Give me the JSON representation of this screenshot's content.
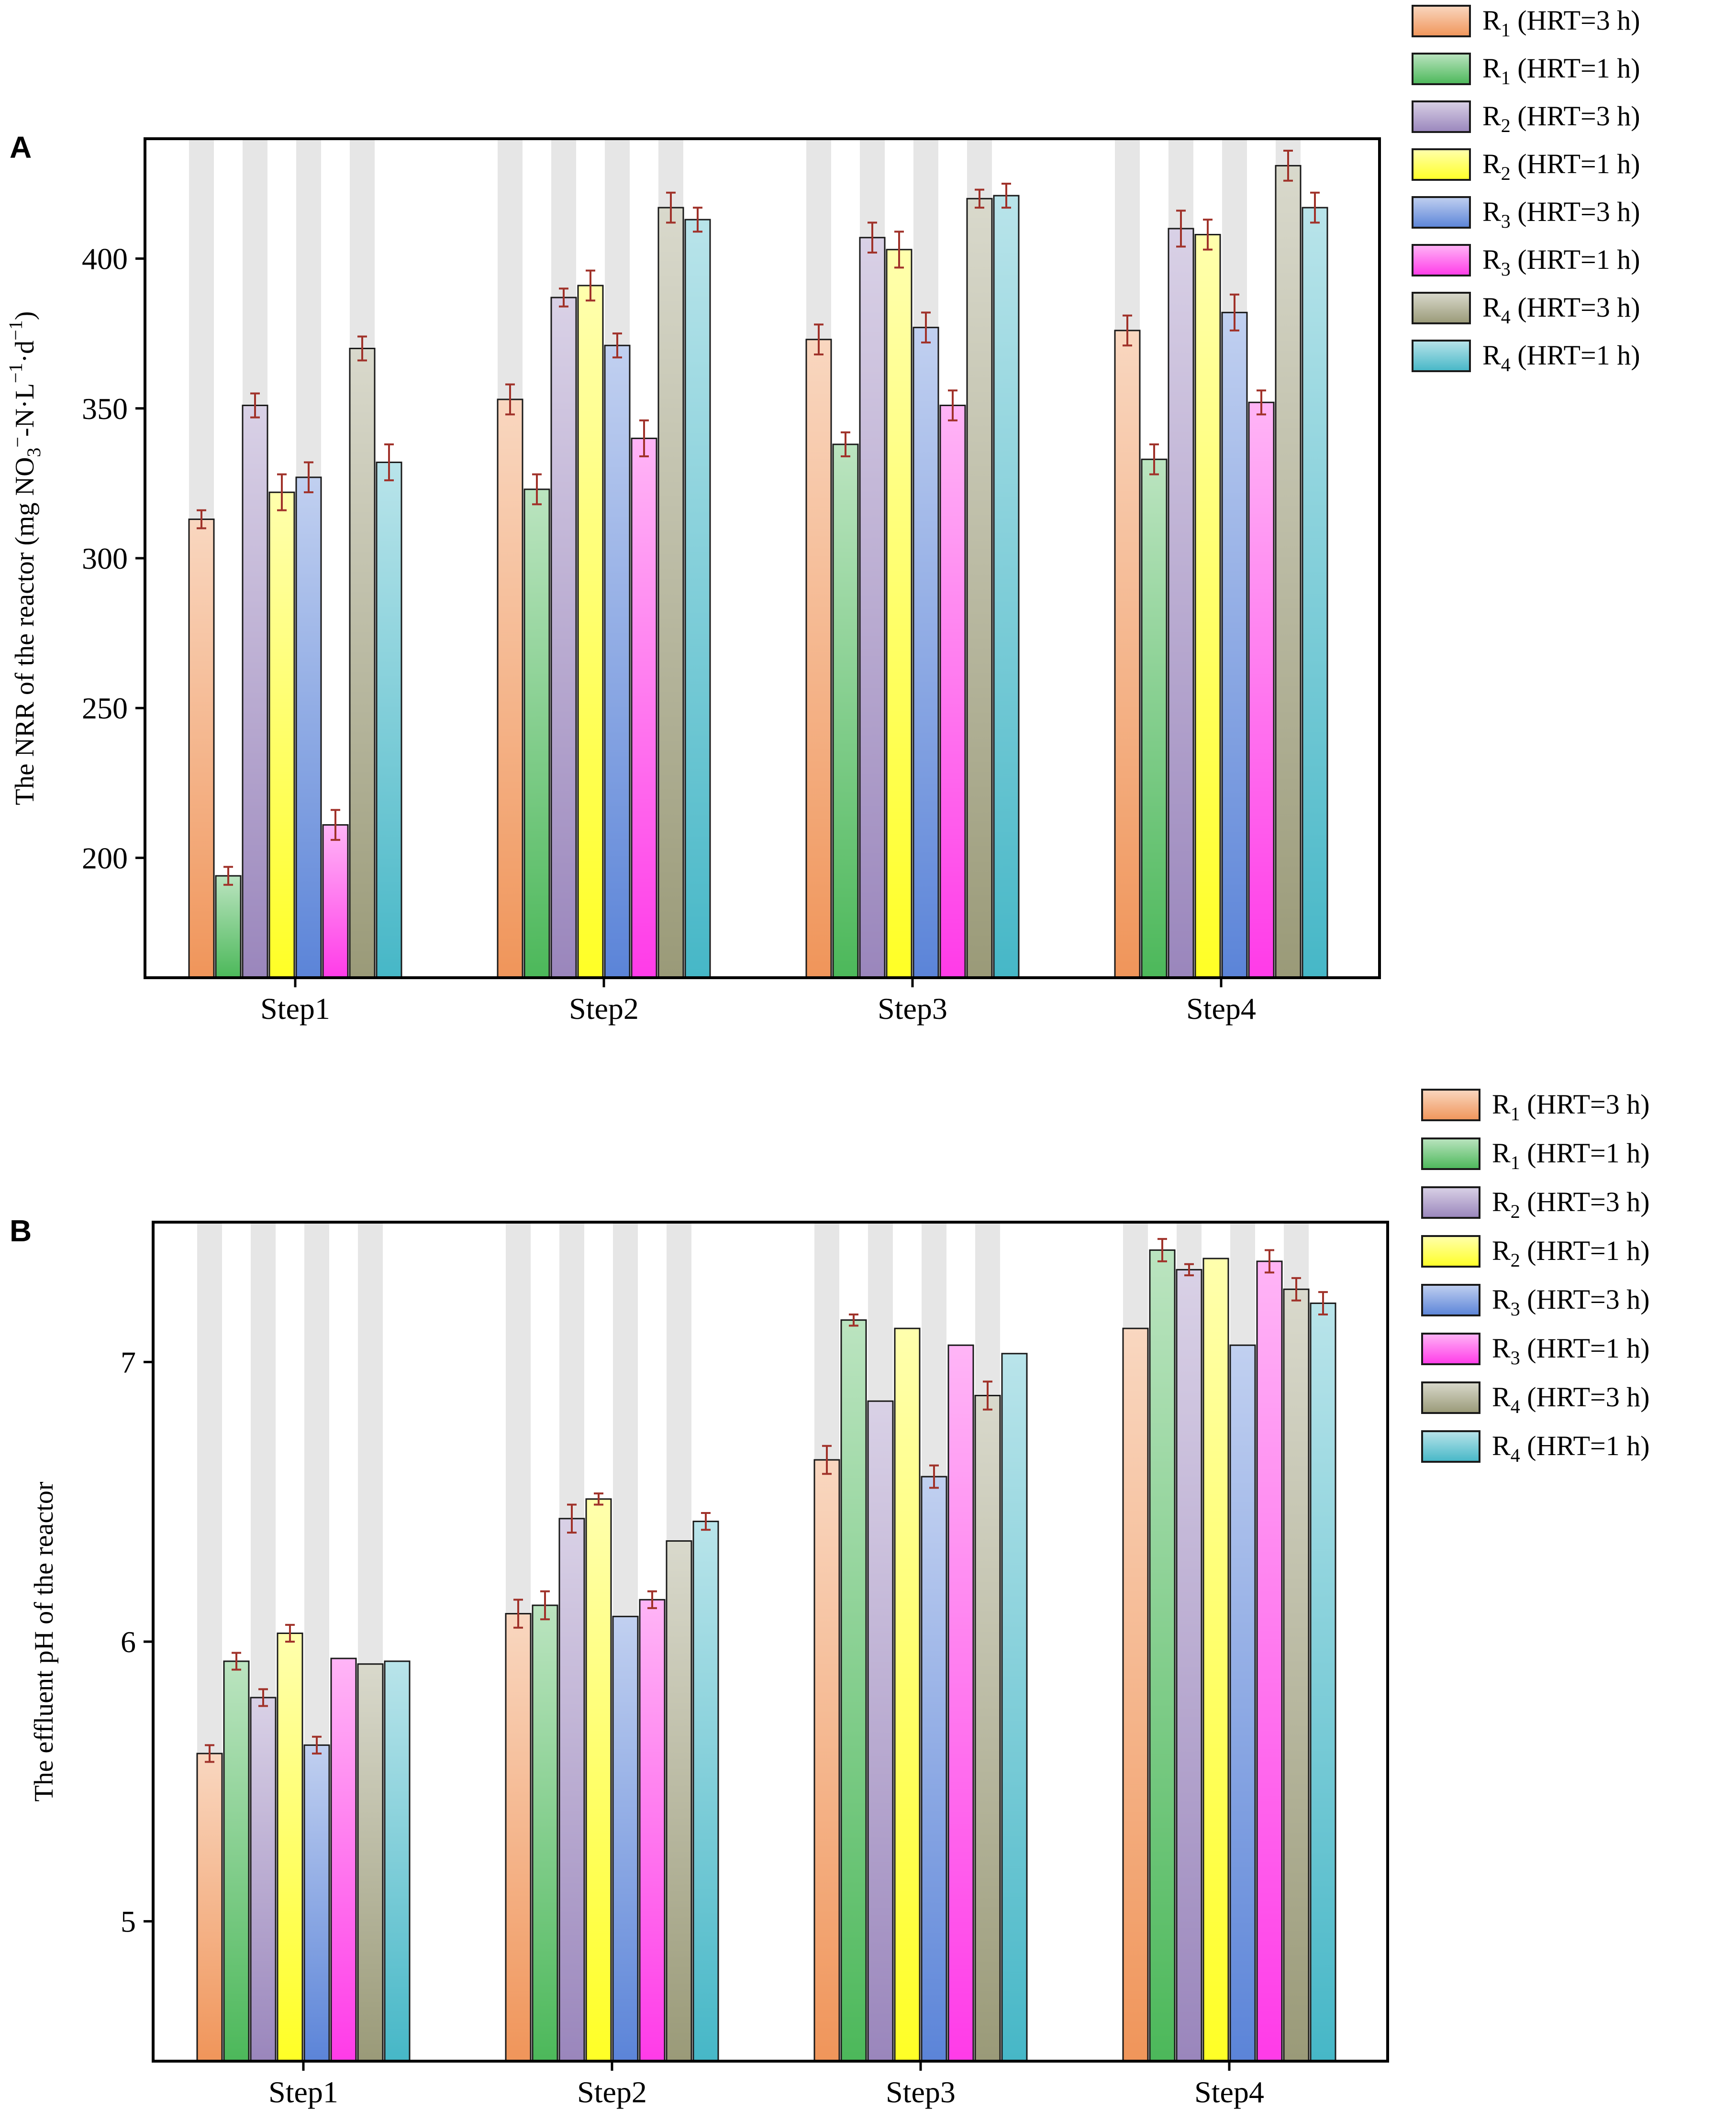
{
  "series_meta": [
    {
      "name": "R1 (HRT=3 h)",
      "base": "R",
      "sub": "1",
      "hrt": "(HRT=3 h)",
      "color": "#f0955a"
    },
    {
      "name": "R1 (HRT=1 h)",
      "base": "R",
      "sub": "1",
      "hrt": "(HRT=1 h)",
      "color": "#4cb85a"
    },
    {
      "name": "R2 (HRT=3 h)",
      "base": "R",
      "sub": "2",
      "hrt": "(HRT=3 h)",
      "color": "#9a86bc"
    },
    {
      "name": "R2 (HRT=1 h)",
      "base": "R",
      "sub": "2",
      "hrt": "(HRT=1 h)",
      "color": "#ffff26"
    },
    {
      "name": "R3 (HRT=3 h)",
      "base": "R",
      "sub": "3",
      "hrt": "(HRT=3 h)",
      "color": "#5b84d8"
    },
    {
      "name": "R3 (HRT=1 h)",
      "base": "R",
      "sub": "3",
      "hrt": "(HRT=1 h)",
      "color": "#ff3be8"
    },
    {
      "name": "R4 (HRT=3 h)",
      "base": "R",
      "sub": "4",
      "hrt": "(HRT=3 h)",
      "color": "#9a9a78"
    },
    {
      "name": "R4 (HRT=1 h)",
      "base": "R",
      "sub": "4",
      "hrt": "(HRT=1 h)",
      "color": "#46b7c7"
    }
  ],
  "chart_data": [
    {
      "type": "bar",
      "panel": "A",
      "title": "",
      "xlabel": "",
      "ylabel": "The NRR of the reactor (mg NO3−-N·L−1·d−1)",
      "ylabel_parts": {
        "prefix": "The NRR of the reactor (mg NO",
        "s1": "3",
        "p1": "−",
        "mid": "-N·L",
        "p2": "−1",
        "dot": "·d",
        "p3": "−1",
        "end": ")"
      },
      "categories": [
        "Step1",
        "Step2",
        "Step3",
        "Step4"
      ],
      "ylim": [
        160,
        440
      ],
      "yticks": [
        200,
        250,
        300,
        350,
        400
      ],
      "legend_position": "outside-top-right",
      "series": [
        {
          "name": "R1 (HRT=3 h)",
          "values": [
            313,
            353,
            373,
            376
          ],
          "errors": [
            3,
            5,
            5,
            5
          ]
        },
        {
          "name": "R1 (HRT=1 h)",
          "values": [
            194,
            323,
            338,
            333
          ],
          "errors": [
            3,
            5,
            4,
            5
          ]
        },
        {
          "name": "R2 (HRT=3 h)",
          "values": [
            351,
            387,
            407,
            410
          ],
          "errors": [
            4,
            3,
            5,
            6
          ]
        },
        {
          "name": "R2 (HRT=1 h)",
          "values": [
            322,
            391,
            403,
            408
          ],
          "errors": [
            6,
            5,
            6,
            5
          ]
        },
        {
          "name": "R3 (HRT=3 h)",
          "values": [
            327,
            371,
            377,
            382
          ],
          "errors": [
            5,
            4,
            5,
            6
          ]
        },
        {
          "name": "R3 (HRT=1 h)",
          "values": [
            211,
            340,
            351,
            352
          ],
          "errors": [
            5,
            6,
            5,
            4
          ]
        },
        {
          "name": "R4 (HRT=3 h)",
          "values": [
            370,
            417,
            420,
            431
          ],
          "errors": [
            4,
            5,
            3,
            5
          ]
        },
        {
          "name": "R4 (HRT=1 h)",
          "values": [
            332,
            413,
            421,
            417
          ],
          "errors": [
            6,
            4,
            4,
            5
          ]
        }
      ]
    },
    {
      "type": "bar",
      "panel": "B",
      "title": "",
      "xlabel": "",
      "ylabel": "The effluent pH of the reactor",
      "categories": [
        "Step1",
        "Step2",
        "Step3",
        "Step4"
      ],
      "ylim": [
        4.5,
        7.5
      ],
      "yticks": [
        5,
        6,
        7
      ],
      "legend_position": "outside-top-right",
      "series": [
        {
          "name": "R1 (HRT=3 h)",
          "values": [
            5.6,
            6.1,
            6.65,
            7.12
          ],
          "errors": [
            0.03,
            0.05,
            0.05,
            0
          ]
        },
        {
          "name": "R1 (HRT=1 h)",
          "values": [
            5.93,
            6.13,
            7.15,
            7.4
          ],
          "errors": [
            0.03,
            0.05,
            0.02,
            0.04
          ]
        },
        {
          "name": "R2 (HRT=3 h)",
          "values": [
            5.8,
            6.44,
            6.86,
            7.33
          ],
          "errors": [
            0.03,
            0.05,
            0,
            0.02
          ]
        },
        {
          "name": "R2 (HRT=1 h)",
          "values": [
            6.03,
            6.51,
            7.12,
            7.37
          ],
          "errors": [
            0.03,
            0.02,
            0,
            0
          ]
        },
        {
          "name": "R3 (HRT=3 h)",
          "values": [
            5.63,
            6.09,
            6.59,
            7.06
          ],
          "errors": [
            0.03,
            0,
            0.04,
            0
          ]
        },
        {
          "name": "R3 (HRT=1 h)",
          "values": [
            5.94,
            6.15,
            7.06,
            7.36
          ],
          "errors": [
            0,
            0.03,
            0,
            0.04
          ]
        },
        {
          "name": "R4 (HRT=3 h)",
          "values": [
            5.92,
            6.36,
            6.88,
            7.26
          ],
          "errors": [
            0,
            0,
            0.05,
            0.04
          ]
        },
        {
          "name": "R4 (HRT=1 h)",
          "values": [
            5.93,
            6.43,
            7.03,
            7.21
          ],
          "errors": [
            0,
            0.03,
            0,
            0.04
          ]
        }
      ]
    }
  ]
}
